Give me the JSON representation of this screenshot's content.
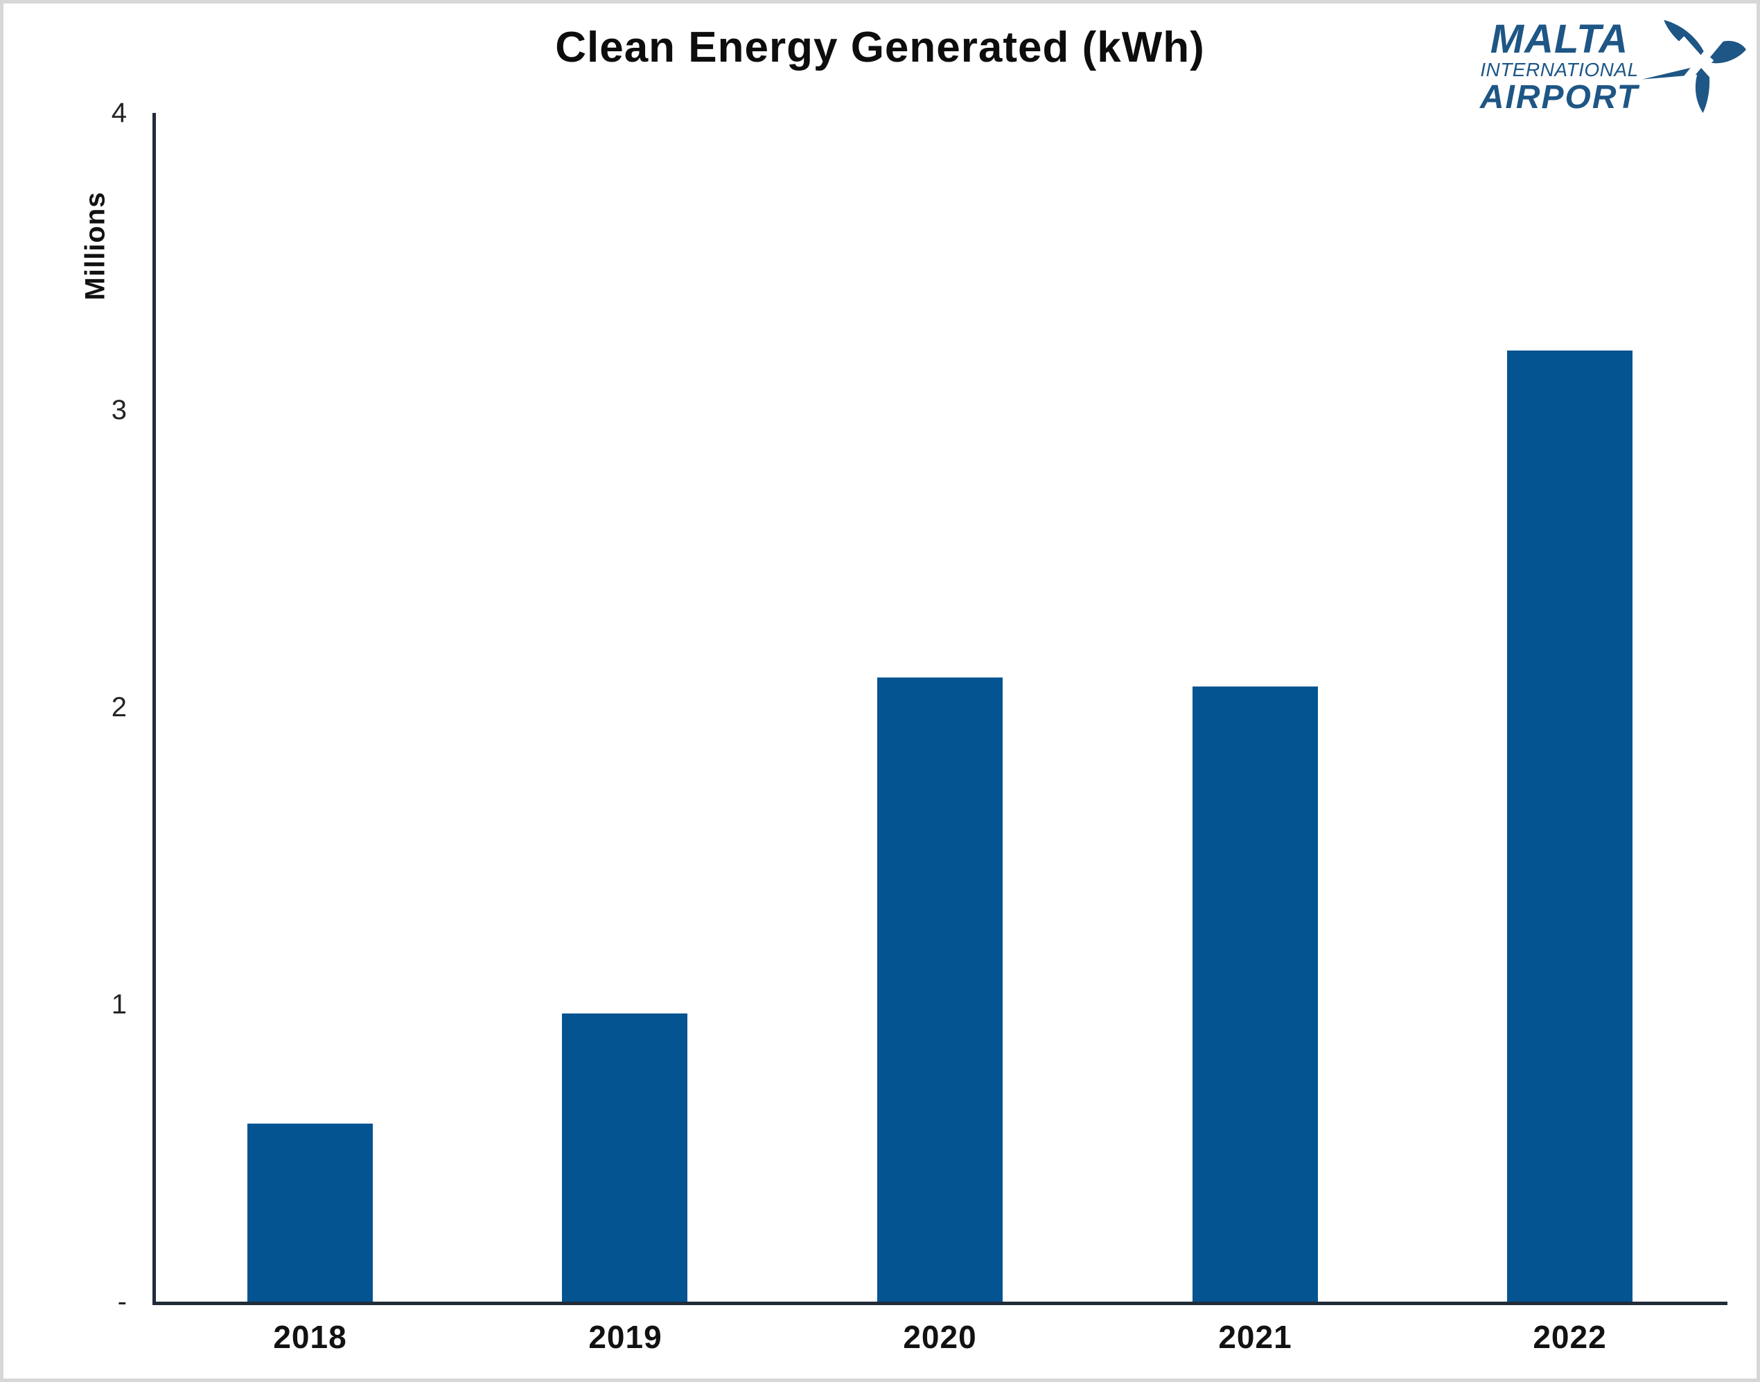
{
  "logo": {
    "line1": "MALTA",
    "line2": "INTERNATIONAL",
    "line3": "AIRPORT",
    "color": "#1E5685"
  },
  "chart_data": {
    "type": "bar",
    "title": "Clean Energy Generated (kWh)",
    "xlabel": "",
    "ylabel": "Millions",
    "unit_note": "y-axis values are millions of kWh",
    "categories": [
      "2018",
      "2019",
      "2020",
      "2021",
      "2022"
    ],
    "values": [
      0.6,
      0.97,
      2.1,
      2.07,
      3.2
    ],
    "ylim": [
      0,
      4
    ],
    "ytick_labels": [
      "4",
      "3",
      "2",
      "1",
      "-"
    ],
    "ytick_values": [
      4,
      3,
      2,
      1,
      0
    ],
    "grid": false,
    "legend": false,
    "bar_color": "#045491",
    "axis_color": "#222C38"
  }
}
